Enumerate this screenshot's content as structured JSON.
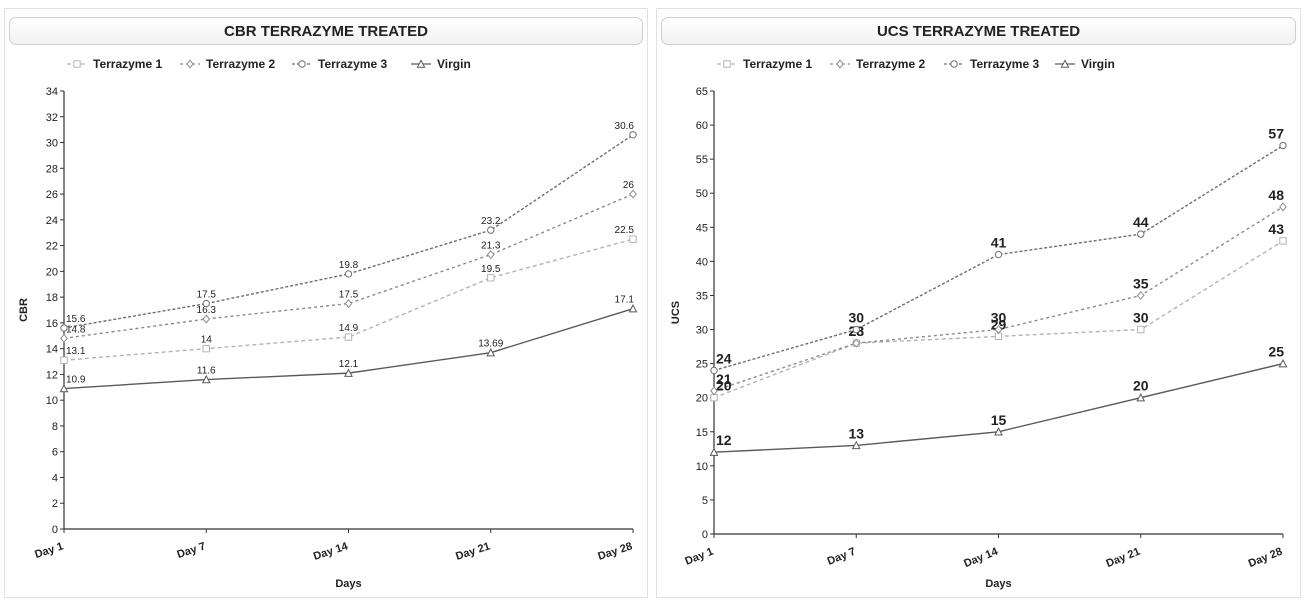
{
  "chart_data": [
    {
      "type": "line",
      "title": "CBR TERRAZYME TREATED",
      "xlabel": "Days",
      "ylabel": "CBR",
      "categories": [
        "Day 1",
        "Day 7",
        "Day 14",
        "Day 21",
        "Day 28"
      ],
      "ylim": [
        0,
        34
      ],
      "yticks": [
        0,
        2,
        4,
        6,
        8,
        10,
        12,
        14,
        16,
        18,
        20,
        22,
        24,
        26,
        28,
        30,
        32,
        34
      ],
      "legend_position": "top",
      "grid": false,
      "series": [
        {
          "name": "Terrazyme 1",
          "marker": "square",
          "color": "#b4b4b4",
          "dash": "4,3",
          "values": [
            13.1,
            14,
            14.9,
            19.5,
            22.5
          ],
          "labels": [
            "13.1",
            "14",
            "14.9",
            "19.5",
            "22.5"
          ]
        },
        {
          "name": "Terrazyme 2",
          "marker": "diamond",
          "color": "#8c8c8c",
          "dash": "3,3",
          "values": [
            14.8,
            16.3,
            17.5,
            21.3,
            26
          ],
          "labels": [
            "14.8",
            "16.3",
            "17.5",
            "21.3",
            "26"
          ]
        },
        {
          "name": "Terrazyme 3",
          "marker": "circle",
          "color": "#6e6e6e",
          "dash": "3,2",
          "values": [
            15.6,
            17.5,
            19.8,
            23.2,
            30.6
          ],
          "labels": [
            "15.6",
            "17.5",
            "19.8",
            "23.2",
            "30.6"
          ]
        },
        {
          "name": "Virgin",
          "marker": "triangle",
          "color": "#5a5a5a",
          "dash": "",
          "values": [
            10.9,
            11.6,
            12.1,
            13.69,
            17.1
          ],
          "labels": [
            "10.9",
            "11.6",
            "12.1",
            "13.69",
            "17.1"
          ]
        }
      ]
    },
    {
      "type": "line",
      "title": "UCS TERRAZYME TREATED",
      "xlabel": "Days",
      "ylabel": "UCS",
      "categories": [
        "Day 1",
        "Day 7",
        "Day 14",
        "Day 21",
        "Day 28"
      ],
      "ylim": [
        0,
        65
      ],
      "yticks": [
        0,
        5,
        10,
        15,
        20,
        25,
        30,
        35,
        40,
        45,
        50,
        55,
        60,
        65
      ],
      "legend_position": "top",
      "grid": false,
      "series": [
        {
          "name": "Terrazyme 1",
          "marker": "square",
          "color": "#b4b4b4",
          "dash": "4,3",
          "values": [
            20,
            28,
            29,
            30,
            43
          ],
          "labels": [
            "20",
            "28",
            "29",
            "30",
            "43"
          ]
        },
        {
          "name": "Terrazyme 2",
          "marker": "diamond",
          "color": "#8c8c8c",
          "dash": "3,3",
          "values": [
            21,
            28,
            30,
            35,
            48
          ],
          "labels": [
            "21",
            "28",
            "30",
            "35",
            "48"
          ]
        },
        {
          "name": "Terrazyme 3",
          "marker": "circle",
          "color": "#6e6e6e",
          "dash": "3,2",
          "values": [
            24,
            30,
            41,
            44,
            57
          ],
          "labels": [
            "24",
            "30",
            "41",
            "44",
            "57"
          ]
        },
        {
          "name": "Virgin",
          "marker": "triangle",
          "color": "#5a5a5a",
          "dash": "",
          "values": [
            12,
            13,
            15,
            20,
            25
          ],
          "labels": [
            "12",
            "13",
            "15",
            "20",
            "25"
          ]
        }
      ]
    }
  ]
}
